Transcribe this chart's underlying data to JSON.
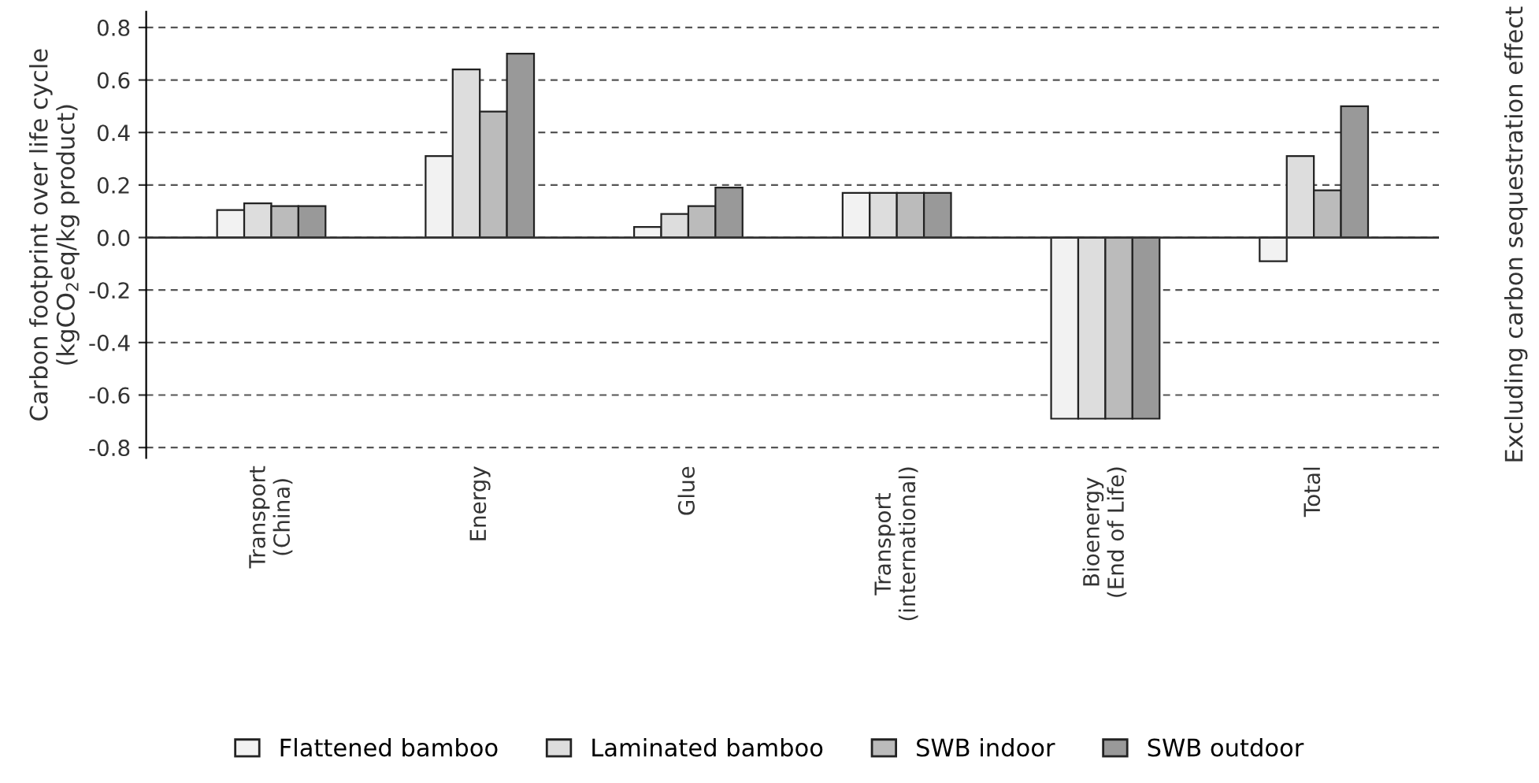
{
  "chart_data": {
    "type": "bar",
    "ylabel": "Carbon footprint over life cycle\n(kgCO$_{2}$eq/kg product)",
    "y2label": "Excluding carbon sequestration effect",
    "categories": [
      "Transport\n(China)",
      "Energy",
      "Glue",
      "Transport\n(international)",
      "Bioenergy\n(End of Life)",
      "Total"
    ],
    "series": [
      {
        "name": "Flattened bamboo",
        "color": "#f2f2f2",
        "values": [
          0.105,
          0.31,
          0.04,
          0.17,
          -0.69,
          -0.09
        ]
      },
      {
        "name": "Laminated bamboo",
        "color": "#dddddd",
        "values": [
          0.13,
          0.64,
          0.09,
          0.17,
          -0.69,
          0.31
        ]
      },
      {
        "name": "SWB indoor",
        "color": "#bbbbbb",
        "values": [
          0.12,
          0.48,
          0.12,
          0.17,
          -0.69,
          0.18
        ]
      },
      {
        "name": "SWB outdoor",
        "color": "#999999",
        "values": [
          0.12,
          0.7,
          0.19,
          0.17,
          -0.69,
          0.5
        ]
      }
    ],
    "ylim": [
      -0.84,
      0.86
    ],
    "yticks": [
      {
        "value": -0.8,
        "label": "-0.8"
      },
      {
        "value": -0.6,
        "label": "-0.6"
      },
      {
        "value": -0.4,
        "label": "-0.4"
      },
      {
        "value": -0.2,
        "label": "-0.2"
      },
      {
        "value": 0,
        "label": "0.0"
      },
      {
        "value": 0.2,
        "label": "0.2"
      },
      {
        "value": 0.4,
        "label": "0.4"
      },
      {
        "value": 0.6,
        "label": "0.6"
      },
      {
        "value": 0.8,
        "label": "0.8"
      }
    ],
    "grid": "y",
    "legend": "bottom"
  }
}
